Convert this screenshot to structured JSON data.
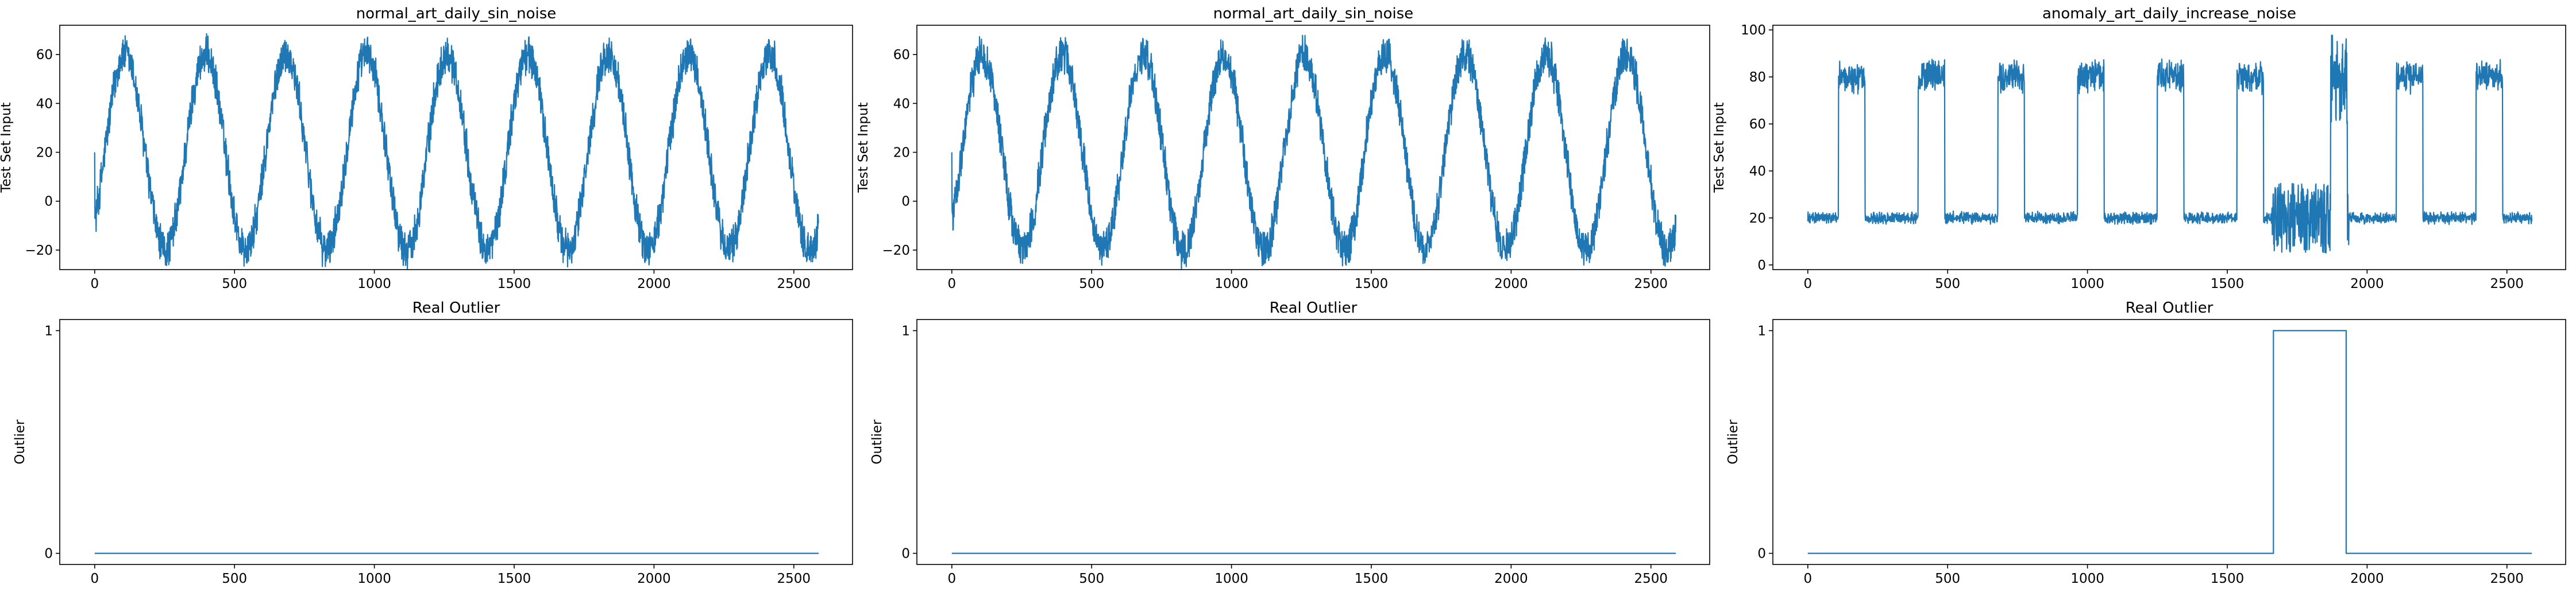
{
  "chart_data": [
    {
      "type": "line",
      "title": "normal_art_daily_sin_noise",
      "xlabel": "",
      "ylabel": "Test Set Input",
      "xlim": [
        -125,
        2710
      ],
      "ylim": [
        -28,
        72
      ],
      "x_ticks": [
        0,
        500,
        1000,
        1500,
        2000,
        2500
      ],
      "y_ticks": [
        -20,
        0,
        20,
        40,
        60
      ],
      "grid": false,
      "color": "#1f77b4",
      "signal": {
        "kind": "sine",
        "length": 2590,
        "period": 288,
        "phase": 0,
        "min": -20,
        "max": 60,
        "noise": 9,
        "start_value": 20
      },
      "series": [
        {
          "values": "sinusoid between -20 and 60 with period 288 and noise"
        }
      ]
    },
    {
      "type": "line",
      "title": "normal_art_daily_sin_noise",
      "xlabel": "",
      "ylabel": "Test Set Input",
      "xlim": [
        -125,
        2710
      ],
      "ylim": [
        -28,
        72
      ],
      "x_ticks": [
        0,
        500,
        1000,
        1500,
        2000,
        2500
      ],
      "y_ticks": [
        -20,
        0,
        20,
        40,
        60
      ],
      "grid": false,
      "color": "#1f77b4",
      "signal": {
        "kind": "sine",
        "length": 2590,
        "period": 288,
        "phase": 0,
        "min": -20,
        "max": 60,
        "noise": 9,
        "start_value": 20
      },
      "series": [
        {
          "values": "sinusoid between -20 and 60 with period 288 and noise"
        }
      ]
    },
    {
      "type": "line",
      "title": "anomaly_art_daily_increase_noise",
      "xlabel": "",
      "ylabel": "Test Set Input",
      "xlim": [
        -125,
        2710
      ],
      "ylim": [
        -2,
        102
      ],
      "x_ticks": [
        0,
        500,
        1000,
        1500,
        2000,
        2500
      ],
      "y_ticks": [
        0,
        20,
        40,
        60,
        80,
        100
      ],
      "grid": false,
      "color": "#1f77b4",
      "signal": {
        "kind": "square",
        "length": 2590,
        "low": 20,
        "high": 80,
        "high_intervals": [
          [
            110,
            205
          ],
          [
            395,
            490
          ],
          [
            680,
            775
          ],
          [
            965,
            1060
          ],
          [
            1250,
            1345
          ],
          [
            1535,
            1630
          ],
          [
            1870,
            1930
          ],
          [
            2105,
            2200
          ],
          [
            2390,
            2485
          ]
        ],
        "noise_low": 3,
        "noise_high": 8,
        "anomaly_interval": [
          1660,
          1935
        ],
        "anomaly_low_range": [
          5,
          35
        ],
        "anomaly_high_range": [
          60,
          98
        ]
      },
      "series": [
        {
          "values": "daily square wave between 20 and 80 with noisy anomaly near 1660-1935"
        }
      ]
    },
    {
      "type": "line",
      "title": "Real Outlier",
      "xlabel": "",
      "ylabel": "Outlier",
      "xlim": [
        -125,
        2710
      ],
      "ylim": [
        -0.05,
        1.05
      ],
      "x_ticks": [
        0,
        500,
        1000,
        1500,
        2000,
        2500
      ],
      "y_ticks": [
        0,
        1
      ],
      "grid": false,
      "color": "#1f77b4",
      "series": [
        {
          "x": [
            0,
            2589
          ],
          "values": [
            0,
            0
          ]
        }
      ]
    },
    {
      "type": "line",
      "title": "Real Outlier",
      "xlabel": "",
      "ylabel": "Outlier",
      "xlim": [
        -125,
        2710
      ],
      "ylim": [
        -0.05,
        1.05
      ],
      "x_ticks": [
        0,
        500,
        1000,
        1500,
        2000,
        2500
      ],
      "y_ticks": [
        0,
        1
      ],
      "grid": false,
      "color": "#1f77b4",
      "series": [
        {
          "x": [
            0,
            2589
          ],
          "values": [
            0,
            0
          ]
        }
      ]
    },
    {
      "type": "line",
      "title": "Real Outlier",
      "xlabel": "",
      "ylabel": "Outlier",
      "xlim": [
        -125,
        2710
      ],
      "ylim": [
        -0.05,
        1.05
      ],
      "x_ticks": [
        0,
        500,
        1000,
        1500,
        2000,
        2500
      ],
      "y_ticks": [
        0,
        1
      ],
      "grid": false,
      "color": "#1f77b4",
      "series": [
        {
          "x": [
            0,
            1665,
            1665,
            1925,
            1925,
            2589
          ],
          "values": [
            0,
            0,
            1,
            1,
            0,
            0
          ]
        }
      ]
    }
  ]
}
